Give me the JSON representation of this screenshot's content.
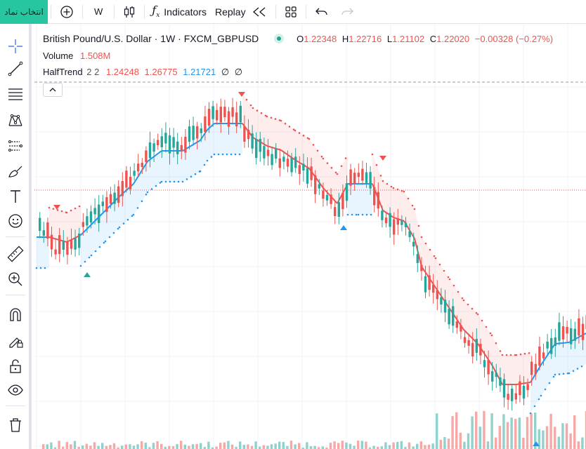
{
  "toolbar": {
    "symbol_button": "انتخاب نماد",
    "interval": "W",
    "indicators_label": "Indicators",
    "replay_label": "Replay"
  },
  "legend": {
    "title": "British Pound/U.S. Dollar · 1W · FXCM_GBPUSD",
    "o_label": "O",
    "o_value": "1.22348",
    "h_label": "H",
    "h_value": "1.22716",
    "l_label": "L",
    "l_value": "1.21102",
    "c_label": "C",
    "c_value": "1.22020",
    "change": "−0.00328 (−0.27%)",
    "volume_label": "Volume",
    "volume_value": "1.508",
    "volume_unit": "M",
    "halftrend_label": "HalfTrend",
    "halftrend_params": "2 2",
    "ht_v1": "1.24248",
    "ht_v2": "1.26775",
    "ht_v3": "1.21721",
    "ht_v4": "∅",
    "ht_v5": "∅"
  },
  "sidebar_tools": [
    "crosshair-icon",
    "trend-line-icon",
    "fib-retracement-icon",
    "pattern-icon",
    "prediction-icon",
    "brush-icon",
    "text-icon",
    "emoji-icon",
    "ruler-icon",
    "zoom-in-icon",
    "magnet-icon",
    "lock-drawing-icon",
    "lock-icon",
    "eye-icon",
    "trash-icon"
  ],
  "colors": {
    "up": "#26a69a",
    "down": "#ef5350",
    "trend_up": "#2196f3",
    "trend_down": "#ef5350",
    "accent": "#26c6a0"
  }
}
